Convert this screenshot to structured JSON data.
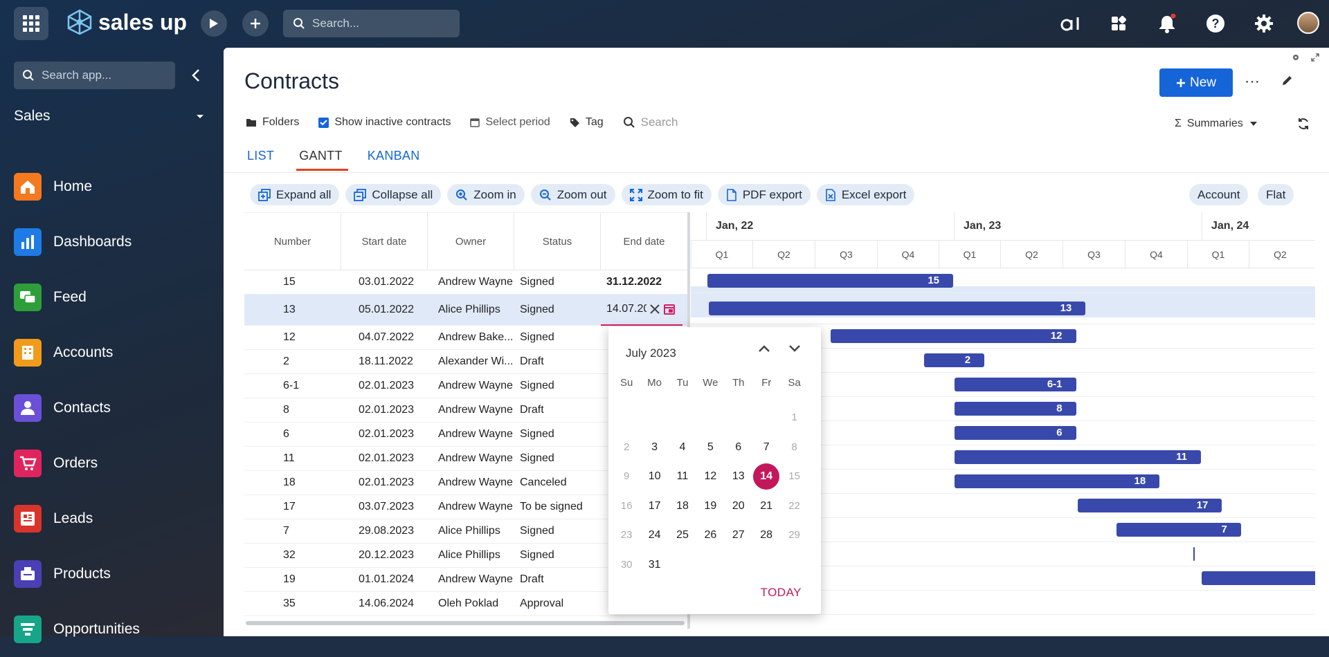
{
  "topbar": {
    "brand": "sales up",
    "search_placeholder": "Search..."
  },
  "sidebar": {
    "search_placeholder": "Search app...",
    "section": "Sales",
    "items": [
      {
        "label": "Home",
        "icon": "home-icon",
        "color": "#f4791f"
      },
      {
        "label": "Dashboards",
        "icon": "bar-chart-icon",
        "color": "#1e7be6"
      },
      {
        "label": "Feed",
        "icon": "chat-icon",
        "color": "#2e9e3a"
      },
      {
        "label": "Accounts",
        "icon": "building-icon",
        "color": "#f29b1b"
      },
      {
        "label": "Contacts",
        "icon": "person-icon",
        "color": "#6a4fd8"
      },
      {
        "label": "Orders",
        "icon": "cart-icon",
        "color": "#e0245e"
      },
      {
        "label": "Leads",
        "icon": "lead-icon",
        "color": "#d9342b"
      },
      {
        "label": "Products",
        "icon": "box-icon",
        "color": "#4a3fb5"
      },
      {
        "label": "Opportunities",
        "icon": "funnel-icon",
        "color": "#17a589"
      }
    ]
  },
  "page": {
    "title": "Contracts",
    "new_label": "New",
    "filters": {
      "folders": "Folders",
      "inactive": "Show inactive contracts",
      "period": "Select period",
      "tag": "Tag",
      "search_placeholder": "Search"
    },
    "summaries": "Summaries",
    "tabs": [
      "LIST",
      "GANTT",
      "KANBAN"
    ],
    "toolbar": [
      "Expand all",
      "Collapse all",
      "Zoom in",
      "Zoom out",
      "Zoom to fit",
      "PDF export",
      "Excel export"
    ],
    "toolbar_right": [
      "Account",
      "Flat"
    ]
  },
  "grid": {
    "columns": [
      "Number",
      "Start date",
      "Owner",
      "Status",
      "End date"
    ],
    "rows": [
      {
        "number": "15",
        "start": "03.01.2022",
        "owner": "Andrew Wayne",
        "status": "Signed",
        "end": "31.12.2022"
      },
      {
        "number": "13",
        "start": "05.01.2022",
        "owner": "Alice Phillips",
        "status": "Signed",
        "end": "14.07.20"
      },
      {
        "number": "12",
        "start": "04.07.2022",
        "owner": "Andrew Bake...",
        "status": "Signed",
        "end": ""
      },
      {
        "number": "2",
        "start": "18.11.2022",
        "owner": "Alexander Wi...",
        "status": "Draft",
        "end": ""
      },
      {
        "number": "6-1",
        "start": "02.01.2023",
        "owner": "Andrew Wayne",
        "status": "Signed",
        "end": ""
      },
      {
        "number": "8",
        "start": "02.01.2023",
        "owner": "Andrew Wayne",
        "status": "Draft",
        "end": ""
      },
      {
        "number": "6",
        "start": "02.01.2023",
        "owner": "Andrew Wayne",
        "status": "Signed",
        "end": ""
      },
      {
        "number": "11",
        "start": "02.01.2023",
        "owner": "Andrew Wayne",
        "status": "Signed",
        "end": ""
      },
      {
        "number": "18",
        "start": "02.01.2023",
        "owner": "Andrew Wayne",
        "status": "Canceled",
        "end": ""
      },
      {
        "number": "17",
        "start": "03.07.2023",
        "owner": "Andrew Wayne",
        "status": "To be signed",
        "end": ""
      },
      {
        "number": "7",
        "start": "29.08.2023",
        "owner": "Alice Phillips",
        "status": "Signed",
        "end": ""
      },
      {
        "number": "32",
        "start": "20.12.2023",
        "owner": "Alice Phillips",
        "status": "Signed",
        "end": ""
      },
      {
        "number": "19",
        "start": "01.01.2024",
        "owner": "Andrew Wayne",
        "status": "Draft",
        "end": ""
      },
      {
        "number": "35",
        "start": "14.06.2024",
        "owner": "Oleh Poklad",
        "status": "Approval",
        "end": ""
      }
    ]
  },
  "gantt": {
    "years": [
      "Jan, 22",
      "Jan, 23",
      "Jan, 24"
    ],
    "quarters": [
      "Q1",
      "Q2",
      "Q3",
      "Q4",
      "Q1",
      "Q2",
      "Q3",
      "Q4",
      "Q1",
      "Q2"
    ],
    "bars": [
      {
        "label": "15",
        "start": "2022-01-03",
        "end": "2022-12-31"
      },
      {
        "label": "13",
        "start": "2022-01-05",
        "end": "2023-07-14"
      },
      {
        "label": "12",
        "start": "2022-07-04",
        "end": "2023-06-30"
      },
      {
        "label": "2",
        "start": "2022-11-18",
        "end": "2023-02-15"
      },
      {
        "label": "6-1",
        "start": "2023-01-02",
        "end": "2023-06-30"
      },
      {
        "label": "8",
        "start": "2023-01-02",
        "end": "2023-06-30"
      },
      {
        "label": "6",
        "start": "2023-01-02",
        "end": "2023-06-30"
      },
      {
        "label": "11",
        "start": "2023-01-02",
        "end": "2023-12-31"
      },
      {
        "label": "18",
        "start": "2023-01-02",
        "end": "2023-10-31"
      },
      {
        "label": "17",
        "start": "2023-07-03",
        "end": "2024-01-31"
      },
      {
        "label": "7",
        "start": "2023-08-29",
        "end": "2024-02-28"
      },
      {
        "label": "",
        "start": "2023-12-20",
        "end": "2023-12-20"
      },
      {
        "label": "",
        "start": "2024-01-01",
        "end": "2024-06-30"
      }
    ]
  },
  "calendar": {
    "month": "July 2023",
    "dow": [
      "Su",
      "Mo",
      "Tu",
      "We",
      "Th",
      "Fr",
      "Sa"
    ],
    "weeks": [
      [
        "",
        "",
        "",
        "",
        "",
        "",
        "1"
      ],
      [
        "2",
        "3",
        "4",
        "5",
        "6",
        "7",
        "8"
      ],
      [
        "9",
        "10",
        "11",
        "12",
        "13",
        "14",
        "15"
      ],
      [
        "16",
        "17",
        "18",
        "19",
        "20",
        "21",
        "22"
      ],
      [
        "23",
        "24",
        "25",
        "26",
        "27",
        "28",
        "29"
      ],
      [
        "30",
        "31",
        "",
        "",
        "",
        "",
        ""
      ]
    ],
    "selected": "14",
    "today_label": "TODAY"
  }
}
